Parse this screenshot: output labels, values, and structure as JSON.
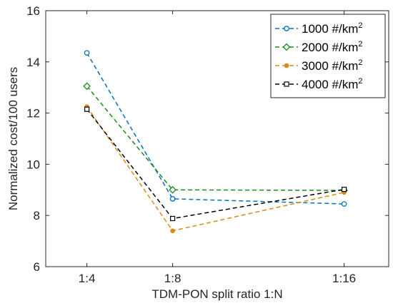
{
  "chart_data": {
    "type": "line",
    "categories": [
      "1:4",
      "1:8",
      "1:16"
    ],
    "xlabel": "TDM-PON split ratio 1:N",
    "ylabel": "Normalized cost/100 users",
    "ylim": [
      6,
      16
    ],
    "yticks": [
      6,
      8,
      10,
      12,
      14,
      16
    ],
    "grid": false,
    "legend_position": "top-right",
    "series": [
      {
        "name_main": "1000 #/km",
        "name_sup": "2",
        "color": "#0072bd",
        "marker": "circle",
        "values": [
          14.35,
          8.65,
          8.45
        ]
      },
      {
        "name_main": "2000 #/km",
        "name_sup": "2",
        "color": "#1a8a1a",
        "marker": "diamond",
        "values": [
          13.05,
          9.0,
          8.98
        ]
      },
      {
        "name_main": "3000 #/km",
        "name_sup": "2",
        "color": "#d98c10",
        "marker": "dot",
        "values": [
          12.25,
          7.4,
          8.9
        ]
      },
      {
        "name_main": "4000 #/km",
        "name_sup": "2",
        "color": "#000000",
        "marker": "square",
        "values": [
          12.15,
          7.88,
          9.02
        ]
      }
    ]
  }
}
